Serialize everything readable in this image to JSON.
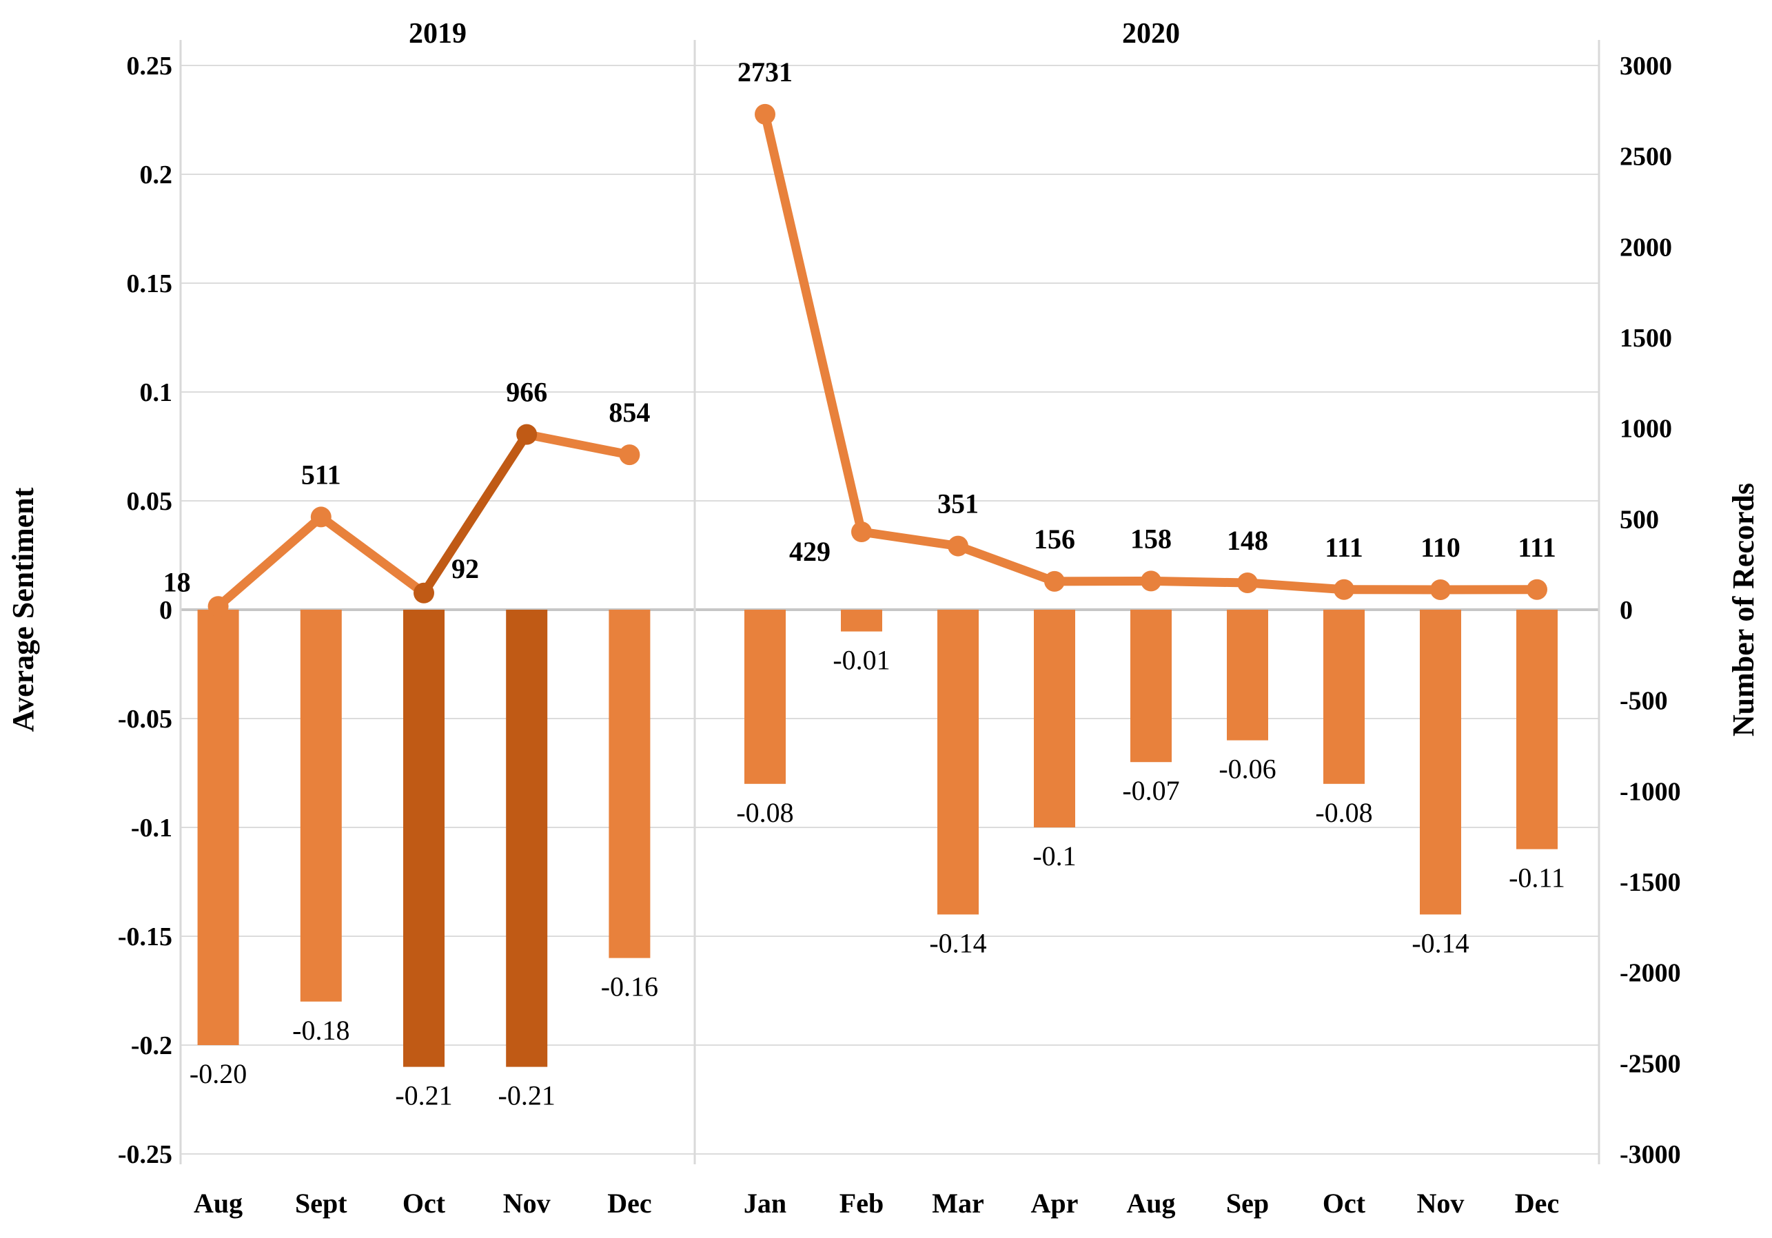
{
  "chart_data": {
    "type": "bar",
    "subtype": "dual-axis combo (columns + line with markers)",
    "title": "",
    "legend": "none",
    "grid": "horizontal gridlines on, vertical panel divider between years",
    "left_axis": {
      "title": "Average Sentiment",
      "min": -0.25,
      "max": 0.25,
      "step": 0.05,
      "tick_labels": [
        "0.25",
        "0.2",
        "0.15",
        "0.1",
        "0.05",
        "0",
        "-0.05",
        "-0.1",
        "-0.15",
        "-0.2",
        "-0.25"
      ]
    },
    "right_axis": {
      "title": "Number of Records",
      "min": -3000,
      "max": 3000,
      "step": 500,
      "tick_labels": [
        "3000",
        "2500",
        "2000",
        "1500",
        "1000",
        "500",
        "0",
        "-500",
        "-1000",
        "-1500",
        "-2000",
        "-2500",
        "-3000"
      ]
    },
    "colors": {
      "bar_light": "#E8813C",
      "bar_dark": "#C05A15",
      "line_light": "#E8813C",
      "line_dark": "#C05A15",
      "gridline": "#DCDCDC",
      "zero_line": "#C6C6C6",
      "panel_border": "#D9D9D9",
      "text": "#000000",
      "background": "#FFFFFF"
    },
    "groups": [
      {
        "year": "2019",
        "categories": [
          "Aug",
          "Sept",
          "Oct",
          "Nov",
          "Dec"
        ],
        "bars": {
          "series_name": "Average Sentiment",
          "values": [
            -0.2,
            -0.18,
            -0.21,
            -0.21,
            -0.16
          ],
          "labels": [
            "-0.20",
            "-0.18",
            "-0.21",
            "-0.21",
            "-0.16"
          ],
          "dark": [
            false,
            false,
            true,
            true,
            false
          ]
        },
        "line": {
          "series_name": "Number of Records",
          "values": [
            18,
            511,
            92,
            966,
            854
          ],
          "labels": [
            "18",
            "511",
            "92",
            "966",
            "854"
          ],
          "dark_points": [
            false,
            false,
            true,
            true,
            false
          ],
          "dark_segments": [
            false,
            false,
            true,
            false
          ],
          "label_pos": [
            "left",
            "above",
            "right",
            "above",
            "above"
          ]
        }
      },
      {
        "year": "2020",
        "categories": [
          "Jan",
          "Feb",
          "Mar",
          "Apr",
          "Aug",
          "Sep",
          "Oct",
          "Nov",
          "Dec"
        ],
        "bars": {
          "series_name": "Average Sentiment",
          "values": [
            -0.08,
            -0.01,
            -0.14,
            -0.1,
            -0.07,
            -0.06,
            -0.08,
            -0.14,
            -0.11
          ],
          "labels": [
            "-0.08",
            "-0.01",
            "-0.14",
            "-0.1",
            "-0.07",
            "-0.06",
            "-0.08",
            "-0.14",
            "-0.11"
          ],
          "dark": [
            false,
            false,
            false,
            false,
            false,
            false,
            false,
            false,
            false
          ]
        },
        "line": {
          "series_name": "Number of Records",
          "values": [
            2731,
            429,
            351,
            156,
            158,
            148,
            111,
            110,
            111
          ],
          "labels": [
            "2731",
            "429",
            "351",
            "156",
            "158",
            "148",
            "111",
            "110",
            "111"
          ],
          "dark_points": [
            false,
            false,
            false,
            false,
            false,
            false,
            false,
            false,
            false
          ],
          "dark_segments": [
            false,
            false,
            false,
            false,
            false,
            false,
            false,
            false
          ],
          "label_pos": [
            "above",
            "left-below",
            "above",
            "above",
            "above",
            "above",
            "above",
            "above",
            "above"
          ]
        }
      }
    ]
  }
}
